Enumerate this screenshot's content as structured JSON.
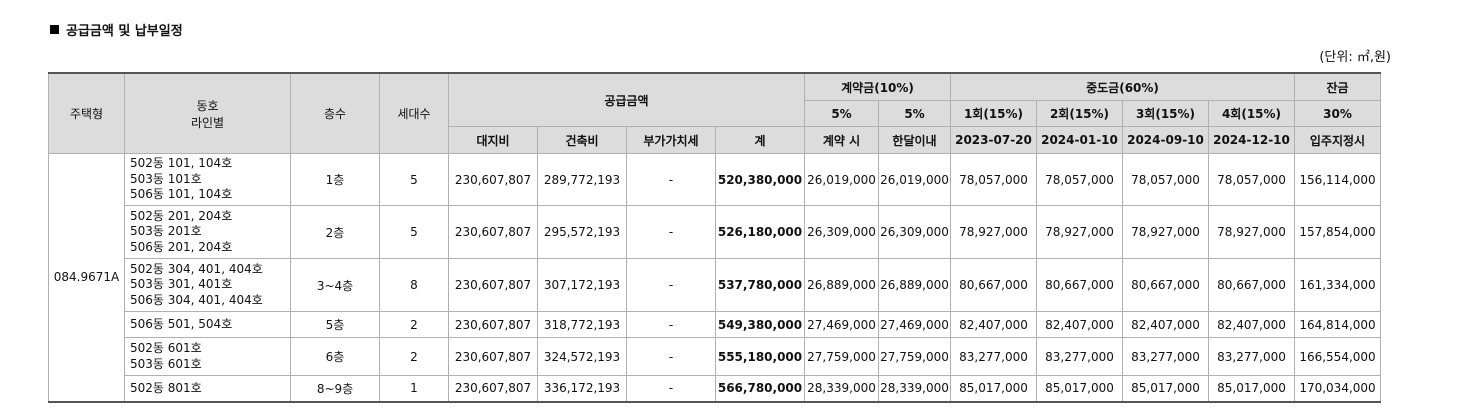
{
  "title": "공급금액 및 납부일정",
  "unit": "(단위: ㎡,원)",
  "headers": {
    "house_type": "주택형",
    "dong_line": [
      "동호",
      "라인별"
    ],
    "floor": "층수",
    "households": "세대수",
    "supply_price": "공급금액",
    "land": "대지비",
    "building": "건축비",
    "vat": "부가가치세",
    "total": "계",
    "deposit": "계약금(10%)",
    "deposit_p1": "5%",
    "deposit_p2": "5%",
    "deposit_t1": "계약 시",
    "deposit_t2": "한달이내",
    "middle": "중도금(60%)",
    "middle_cols": [
      {
        "label": "1회(15%)",
        "date": "2023-07-20"
      },
      {
        "label": "2회(15%)",
        "date": "2024-01-10"
      },
      {
        "label": "3회(15%)",
        "date": "2024-09-10"
      },
      {
        "label": "4회(15%)",
        "date": "2024-12-10"
      }
    ],
    "balance": "잔금",
    "balance_p": "30%",
    "balance_t": "입주지정시"
  },
  "house_type_value": "084.9671A",
  "rows": [
    {
      "lines": [
        "502동 101, 104호",
        "503동 101호",
        "506동 101, 104호"
      ],
      "floor": "1층",
      "households": "5",
      "land": "230,607,807",
      "building": "289,772,193",
      "vat": "-",
      "total": "520,380,000",
      "dep1": "26,019,000",
      "dep2": "26,019,000",
      "m1": "78,057,000",
      "m2": "78,057,000",
      "m3": "78,057,000",
      "m4": "78,057,000",
      "balance": "156,114,000"
    },
    {
      "lines": [
        "502동 201, 204호",
        "503동 201호",
        "506동 201, 204호"
      ],
      "floor": "2층",
      "households": "5",
      "land": "230,607,807",
      "building": "295,572,193",
      "vat": "-",
      "total": "526,180,000",
      "dep1": "26,309,000",
      "dep2": "26,309,000",
      "m1": "78,927,000",
      "m2": "78,927,000",
      "m3": "78,927,000",
      "m4": "78,927,000",
      "balance": "157,854,000"
    },
    {
      "lines": [
        "502동 304, 401, 404호",
        "503동 301, 401호",
        "506동 304, 401, 404호"
      ],
      "floor": "3~4층",
      "households": "8",
      "land": "230,607,807",
      "building": "307,172,193",
      "vat": "-",
      "total": "537,780,000",
      "dep1": "26,889,000",
      "dep2": "26,889,000",
      "m1": "80,667,000",
      "m2": "80,667,000",
      "m3": "80,667,000",
      "m4": "80,667,000",
      "balance": "161,334,000"
    },
    {
      "lines": [
        "506동 501, 504호"
      ],
      "floor": "5층",
      "households": "2",
      "land": "230,607,807",
      "building": "318,772,193",
      "vat": "-",
      "total": "549,380,000",
      "dep1": "27,469,000",
      "dep2": "27,469,000",
      "m1": "82,407,000",
      "m2": "82,407,000",
      "m3": "82,407,000",
      "m4": "82,407,000",
      "balance": "164,814,000"
    },
    {
      "lines": [
        "502동 601호",
        "503동 601호"
      ],
      "floor": "6층",
      "households": "2",
      "land": "230,607,807",
      "building": "324,572,193",
      "vat": "-",
      "total": "555,180,000",
      "dep1": "27,759,000",
      "dep2": "27,759,000",
      "m1": "83,277,000",
      "m2": "83,277,000",
      "m3": "83,277,000",
      "m4": "83,277,000",
      "balance": "166,554,000"
    },
    {
      "lines": [
        "502동 801호"
      ],
      "floor": "8~9층",
      "households": "1",
      "land": "230,607,807",
      "building": "336,172,193",
      "vat": "-",
      "total": "566,780,000",
      "dep1": "28,339,000",
      "dep2": "28,339,000",
      "m1": "85,017,000",
      "m2": "85,017,000",
      "m3": "85,017,000",
      "m4": "85,017,000",
      "balance": "170,034,000"
    }
  ]
}
